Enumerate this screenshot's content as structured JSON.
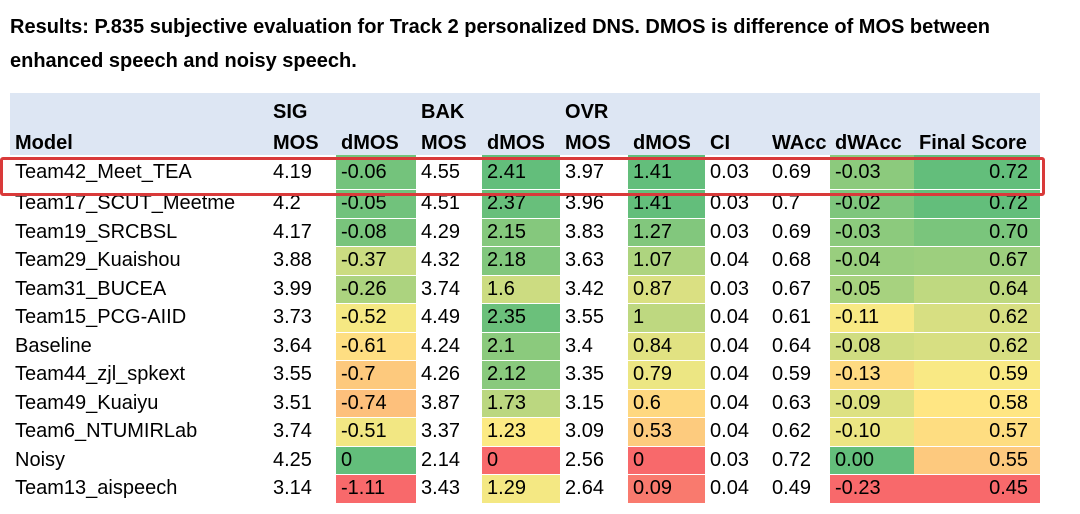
{
  "caption": "Results: P.835 subjective evaluation for Track 2 personalized DNS. DMOS is difference of MOS between enhanced speech and noisy speech.",
  "header": {
    "groups": [
      "SIG",
      "BAK",
      "OVR"
    ],
    "columns": [
      "Model",
      "MOS",
      "dMOS",
      "MOS",
      "dMOS",
      "MOS",
      "dMOS",
      "CI",
      "WAcc",
      "dWAcc",
      "Final Score"
    ]
  },
  "highlighted_row": 0,
  "colors": {
    "highlight_border": "#d93a3a",
    "header_bg": "#dde6f3"
  },
  "rows": [
    {
      "model": "Team42_Meet_TEA",
      "sig_mos": "4.19",
      "sig_dmos": "-0.06",
      "bak_mos": "4.55",
      "bak_dmos": "2.41",
      "ovr_mos": "3.97",
      "ovr_dmos": "1.41",
      "ci": "0.03",
      "wacc": "0.69",
      "dwacc": "-0.03",
      "final": "0.72"
    },
    {
      "model": "Team17_SCUT_Meetme",
      "sig_mos": "4.2",
      "sig_dmos": "-0.05",
      "bak_mos": "4.51",
      "bak_dmos": "2.37",
      "ovr_mos": "3.96",
      "ovr_dmos": "1.41",
      "ci": "0.03",
      "wacc": "0.7",
      "dwacc": "-0.02",
      "final": "0.72"
    },
    {
      "model": "Team19_SRCBSL",
      "sig_mos": "4.17",
      "sig_dmos": "-0.08",
      "bak_mos": "4.29",
      "bak_dmos": "2.15",
      "ovr_mos": "3.83",
      "ovr_dmos": "1.27",
      "ci": "0.03",
      "wacc": "0.69",
      "dwacc": "-0.03",
      "final": "0.70"
    },
    {
      "model": "Team29_Kuaishou",
      "sig_mos": "3.88",
      "sig_dmos": "-0.37",
      "bak_mos": "4.32",
      "bak_dmos": "2.18",
      "ovr_mos": "3.63",
      "ovr_dmos": "1.07",
      "ci": "0.04",
      "wacc": "0.68",
      "dwacc": "-0.04",
      "final": "0.67"
    },
    {
      "model": "Team31_BUCEA",
      "sig_mos": "3.99",
      "sig_dmos": "-0.26",
      "bak_mos": "3.74",
      "bak_dmos": "1.6",
      "ovr_mos": "3.42",
      "ovr_dmos": "0.87",
      "ci": "0.03",
      "wacc": "0.67",
      "dwacc": "-0.05",
      "final": "0.64"
    },
    {
      "model": "Team15_PCG-AIID",
      "sig_mos": "3.73",
      "sig_dmos": "-0.52",
      "bak_mos": "4.49",
      "bak_dmos": "2.35",
      "ovr_mos": "3.55",
      "ovr_dmos": "1",
      "ci": "0.04",
      "wacc": "0.61",
      "dwacc": "-0.11",
      "final": "0.62"
    },
    {
      "model": "Baseline",
      "sig_mos": "3.64",
      "sig_dmos": "-0.61",
      "bak_mos": "4.24",
      "bak_dmos": "2.1",
      "ovr_mos": "3.4",
      "ovr_dmos": "0.84",
      "ci": "0.04",
      "wacc": "0.64",
      "dwacc": "-0.08",
      "final": "0.62"
    },
    {
      "model": "Team44_zjl_spkext",
      "sig_mos": "3.55",
      "sig_dmos": "-0.7",
      "bak_mos": "4.26",
      "bak_dmos": "2.12",
      "ovr_mos": "3.35",
      "ovr_dmos": "0.79",
      "ci": "0.04",
      "wacc": "0.59",
      "dwacc": "-0.13",
      "final": "0.59"
    },
    {
      "model": "Team49_Kuaiyu",
      "sig_mos": "3.51",
      "sig_dmos": "-0.74",
      "bak_mos": "3.87",
      "bak_dmos": "1.73",
      "ovr_mos": "3.15",
      "ovr_dmos": "0.6",
      "ci": "0.04",
      "wacc": "0.63",
      "dwacc": "-0.09",
      "final": "0.58"
    },
    {
      "model": "Team6_NTUMIRLab",
      "sig_mos": "3.74",
      "sig_dmos": "-0.51",
      "bak_mos": "3.37",
      "bak_dmos": "1.23",
      "ovr_mos": "3.09",
      "ovr_dmos": "0.53",
      "ci": "0.04",
      "wacc": "0.62",
      "dwacc": "-0.10",
      "final": "0.57"
    },
    {
      "model": "Noisy",
      "sig_mos": "4.25",
      "sig_dmos": "0",
      "bak_mos": "2.14",
      "bak_dmos": "0",
      "ovr_mos": "2.56",
      "ovr_dmos": "0",
      "ci": "0.03",
      "wacc": "0.72",
      "dwacc": "0.00",
      "final": "0.55"
    },
    {
      "model": "Team13_aispeech",
      "sig_mos": "3.14",
      "sig_dmos": "-1.11",
      "bak_mos": "3.43",
      "bak_dmos": "1.29",
      "ovr_mos": "2.64",
      "ovr_dmos": "0.09",
      "ci": "0.04",
      "wacc": "0.49",
      "dwacc": "-0.23",
      "final": "0.45"
    }
  ]
}
